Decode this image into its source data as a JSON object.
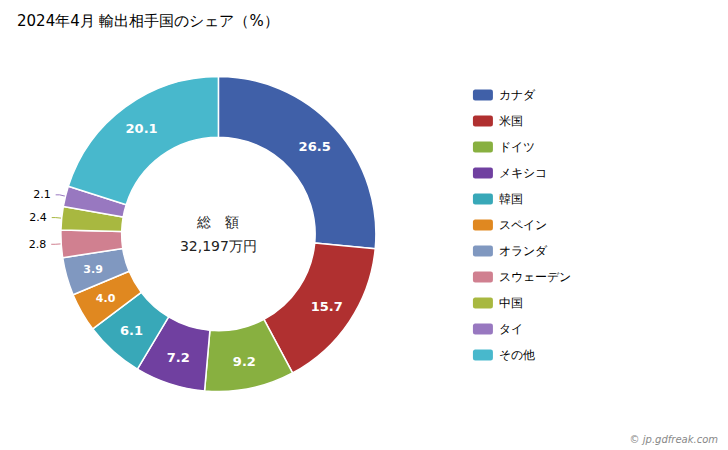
{
  "chart_data": {
    "type": "pie",
    "title": "2024年4月 輸出相手国のシェア（%）",
    "categories": [
      "カナダ",
      "米国",
      "ドイツ",
      "メキシコ",
      "韓国",
      "スペイン",
      "オランダ",
      "スウェーデン",
      "中国",
      "タイ",
      "その他"
    ],
    "values": [
      26.5,
      15.7,
      9.2,
      7.2,
      6.1,
      4.0,
      3.9,
      2.8,
      2.4,
      2.1,
      20.1
    ],
    "value_labels": [
      "26.5",
      "15.7",
      "9.2",
      "7.2",
      "6.1",
      "4.0",
      "3.9",
      "2.8",
      "2.4",
      "2.1",
      "20.1"
    ],
    "colors": [
      "#4060A8",
      "#B03030",
      "#88B040",
      "#7040A0",
      "#38A8B8",
      "#E08820",
      "#8098C0",
      "#D08090",
      "#A8B840",
      "#9878C0",
      "#48B8CC"
    ],
    "annotations": [
      "総　額",
      "32,197万円",
      "© jp.gdfreak.com"
    ],
    "data_labels": true,
    "legend": "right"
  }
}
